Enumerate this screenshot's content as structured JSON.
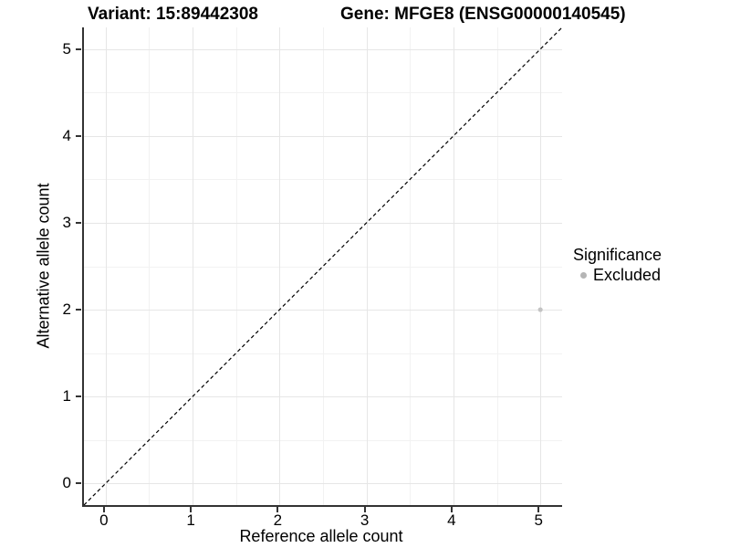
{
  "chart_data": {
    "type": "scatter",
    "title_left": "Variant: 15:89442308",
    "title_right": "Gene: MFGE8 (ENSG00000140545)",
    "xlabel": "Reference allele count",
    "ylabel": "Alternative allele count",
    "xlim": [
      -0.25,
      5.25
    ],
    "ylim": [
      -0.25,
      5.25
    ],
    "x_ticks": [
      0,
      1,
      2,
      3,
      4,
      5
    ],
    "y_ticks": [
      0,
      1,
      2,
      3,
      4,
      5
    ],
    "x_minor": [
      0.5,
      1.5,
      2.5,
      3.5,
      4.5
    ],
    "y_minor": [
      0.5,
      1.5,
      2.5,
      3.5,
      4.5
    ],
    "grid": true,
    "identity_line": {
      "style": "dashed",
      "color": "#000000",
      "x1": -0.25,
      "y1": -0.25,
      "x2": 5.25,
      "y2": 5.25
    },
    "series": [
      {
        "name": "Excluded",
        "color": "#c3c3c3",
        "points": [
          {
            "x": 5,
            "y": 2
          }
        ]
      }
    ],
    "legend": {
      "title": "Significance",
      "position": "right",
      "items": [
        {
          "label": "Excluded",
          "color": "#b5b5b5"
        }
      ]
    },
    "colors": {
      "axis_line": "#333333",
      "grid_major": "#e6e6e6",
      "grid_minor": "#f2f2f2",
      "point": "#c3c3c3",
      "text": "#000000"
    },
    "point_radius_px": 2.6
  }
}
